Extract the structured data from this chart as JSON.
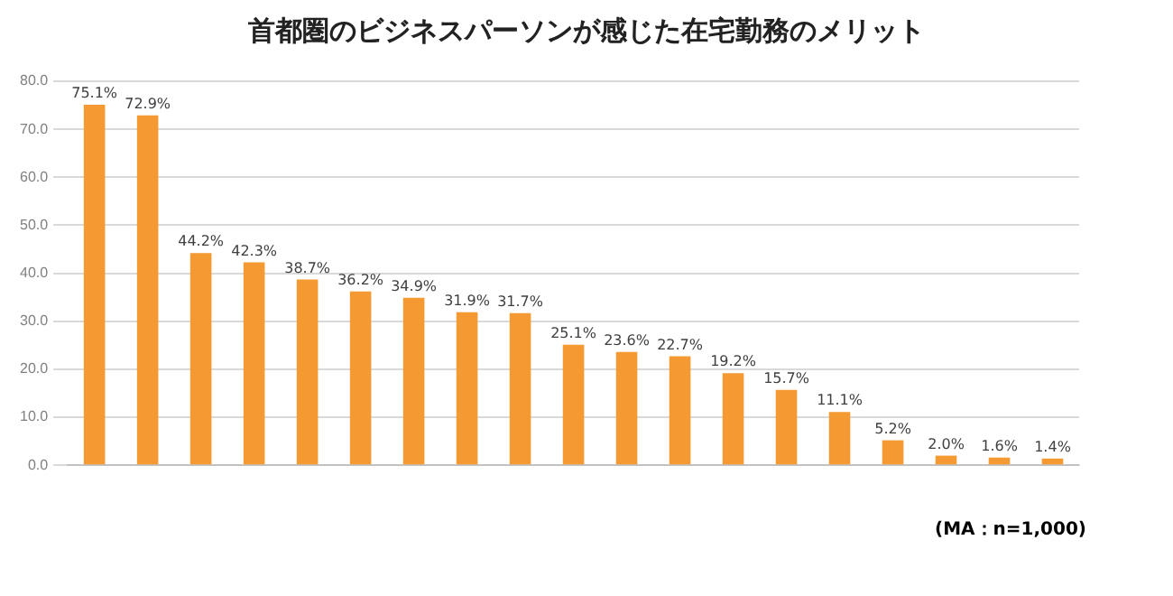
{
  "chart_data": {
    "type": "bar",
    "title": "首都圏のビジネスパーソンが感じた在宅勤務のメリット",
    "categories": [
      null,
      null,
      null,
      null,
      null,
      null,
      null,
      null,
      null,
      null,
      null,
      null,
      null,
      null,
      null,
      null,
      null,
      null,
      null
    ],
    "values": [
      75.1,
      72.9,
      44.2,
      42.3,
      38.7,
      36.2,
      34.9,
      31.9,
      31.7,
      25.1,
      23.6,
      22.7,
      19.2,
      15.7,
      11.1,
      5.2,
      2.0,
      1.6,
      1.4
    ],
    "value_labels": [
      "75.1%",
      "72.9%",
      "44.2%",
      "42.3%",
      "38.7%",
      "36.2%",
      "34.9%",
      "31.9%",
      "31.7%",
      "25.1%",
      "23.6%",
      "22.7%",
      "19.2%",
      "15.7%",
      "11.1%",
      "5.2%",
      "2.0%",
      "1.6%",
      "1.4%"
    ],
    "color": "#f59a32",
    "ylim": [
      0,
      80
    ],
    "yticks": [
      {
        "value": 0,
        "label": "0.0"
      },
      {
        "value": 10,
        "label": "10.0"
      },
      {
        "value": 20,
        "label": "20.0"
      },
      {
        "value": 30,
        "label": "30.0"
      },
      {
        "value": 40,
        "label": "40.0"
      },
      {
        "value": 50,
        "label": "50.0"
      },
      {
        "value": 60,
        "label": "60.0"
      },
      {
        "value": 70,
        "label": "70.0"
      },
      {
        "value": 80,
        "label": "80.0"
      }
    ],
    "grid": "y",
    "legend": false,
    "annotations": [
      "(MA：n=1,000)"
    ]
  }
}
